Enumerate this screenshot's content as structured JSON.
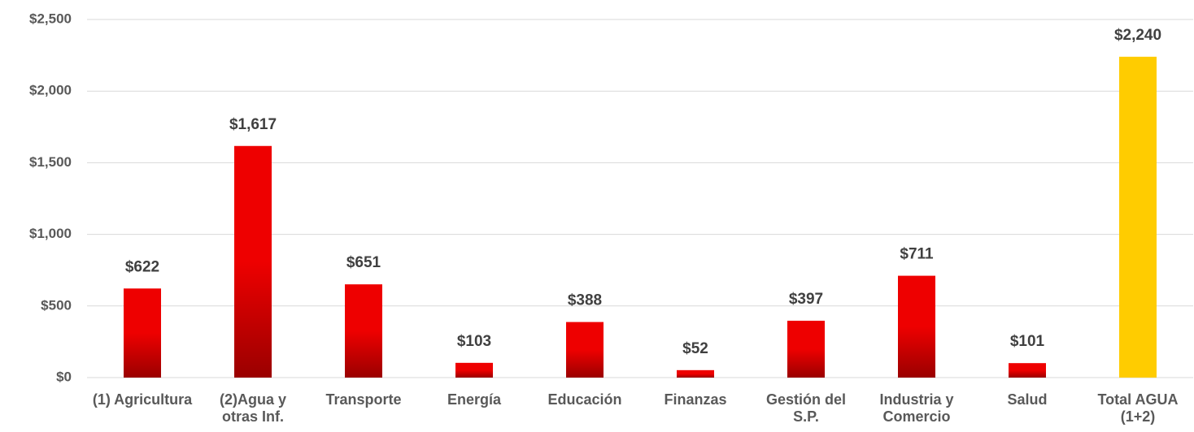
{
  "chart_data": {
    "type": "bar",
    "categories": [
      "(1) Agricultura",
      "(2)Agua y otras Inf.",
      "Transporte",
      "Energía",
      "Educación",
      "Finanzas",
      "Gestión del S.P.",
      "Industria y Comercio",
      "Salud",
      "Total AGUA (1+2)"
    ],
    "values": [
      622,
      1617,
      651,
      103,
      388,
      52,
      397,
      711,
      101,
      2240
    ],
    "value_labels": [
      "$622",
      "$1,617",
      "$651",
      "$103",
      "$388",
      "$52",
      "$397",
      "$711",
      "$101",
      "$2,240"
    ],
    "colors": [
      "#ee0000",
      "#ee0000",
      "#ee0000",
      "#ee0000",
      "#ee0000",
      "#ee0000",
      "#ee0000",
      "#ee0000",
      "#ee0000",
      "#ffcc00"
    ],
    "ylim": [
      0,
      2500
    ],
    "yticks": [
      {
        "value": 0,
        "label": "$0"
      },
      {
        "value": 500,
        "label": "$500"
      },
      {
        "value": 1000,
        "label": "$1,000"
      },
      {
        "value": 1500,
        "label": "$1,500"
      },
      {
        "value": 2000,
        "label": "$2,000"
      },
      {
        "value": 2500,
        "label": "$2,500"
      }
    ],
    "grid": true
  }
}
